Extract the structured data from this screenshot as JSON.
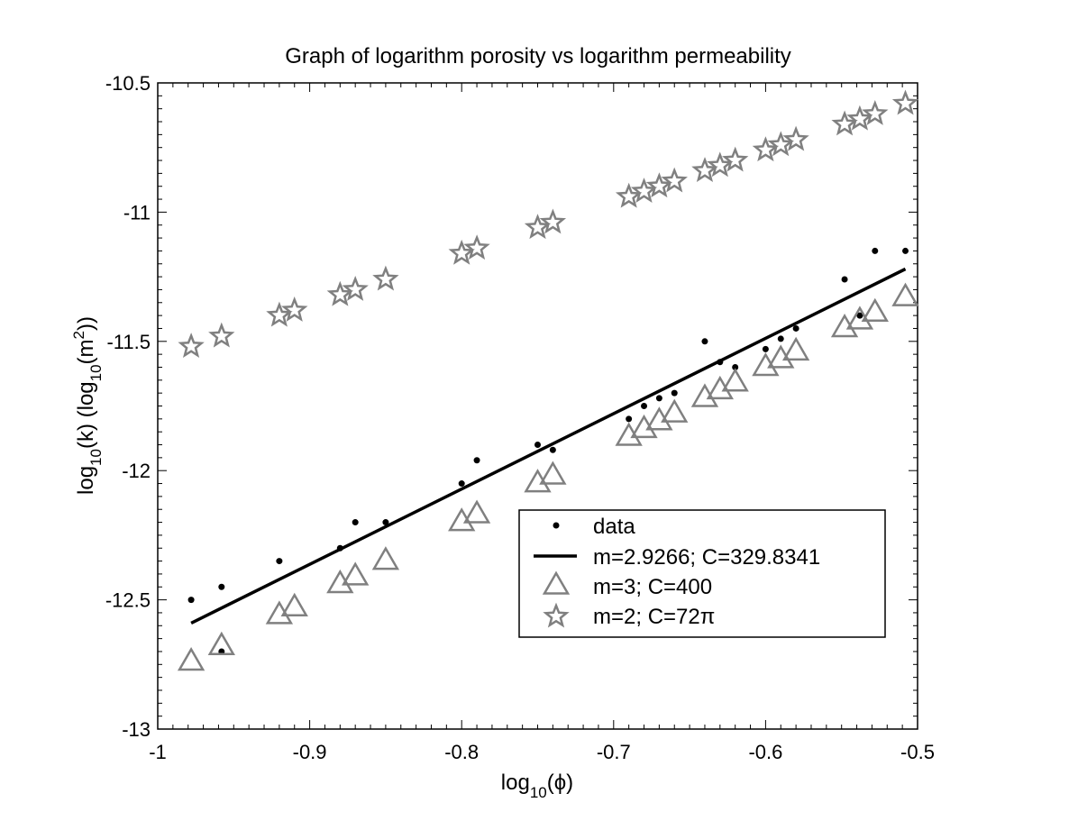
{
  "chart_data": {
    "type": "scatter",
    "title": "Graph of logarithm porosity vs logarithm permeability",
    "xlabel": {
      "pre": "log",
      "sub": "10",
      "post": "(ϕ)"
    },
    "ylabel": {
      "p1": "log",
      "s1": "10",
      "p2": "(k) (log",
      "s2": "10",
      "p3": "(m",
      "sup": "2",
      "p4": "))"
    },
    "xlim": [
      -1,
      -0.5
    ],
    "ylim": [
      -13,
      -10.5
    ],
    "xticks": [
      "-1",
      "-0.9",
      "-0.8",
      "-0.7",
      "-0.6",
      "-0.5"
    ],
    "yticks": [
      "-10.5",
      "-11",
      "-11.5",
      "-12",
      "-12.5",
      "-13"
    ],
    "grid": false,
    "legend_position": "lower-right",
    "series": [
      {
        "name": "data",
        "marker": "dot",
        "color": "#000000",
        "points": [
          [
            -0.978,
            -12.5
          ],
          [
            -0.958,
            -12.45
          ],
          [
            -0.958,
            -12.7
          ],
          [
            -0.92,
            -12.35
          ],
          [
            -0.88,
            -12.3
          ],
          [
            -0.87,
            -12.2
          ],
          [
            -0.85,
            -12.2
          ],
          [
            -0.8,
            -12.05
          ],
          [
            -0.79,
            -11.96
          ],
          [
            -0.75,
            -11.9
          ],
          [
            -0.74,
            -11.92
          ],
          [
            -0.69,
            -11.8
          ],
          [
            -0.68,
            -11.75
          ],
          [
            -0.67,
            -11.72
          ],
          [
            -0.66,
            -11.7
          ],
          [
            -0.64,
            -11.5
          ],
          [
            -0.63,
            -11.58
          ],
          [
            -0.62,
            -11.6
          ],
          [
            -0.6,
            -11.53
          ],
          [
            -0.59,
            -11.49
          ],
          [
            -0.58,
            -11.45
          ],
          [
            -0.548,
            -11.26
          ],
          [
            -0.538,
            -11.4
          ],
          [
            -0.528,
            -11.15
          ],
          [
            -0.508,
            -11.15
          ]
        ]
      },
      {
        "name": "m=2.9266; C=329.8341",
        "marker": "line",
        "color": "#000000",
        "points": [
          [
            -0.978,
            -12.59
          ],
          [
            -0.508,
            -11.22
          ]
        ]
      },
      {
        "name": "m=3; C=400",
        "marker": "triangle",
        "color": "#808080",
        "points": [
          [
            -0.978,
            -12.74
          ],
          [
            -0.958,
            -12.68
          ],
          [
            -0.92,
            -12.56
          ],
          [
            -0.91,
            -12.53
          ],
          [
            -0.88,
            -12.44
          ],
          [
            -0.87,
            -12.41
          ],
          [
            -0.85,
            -12.35
          ],
          [
            -0.8,
            -12.2
          ],
          [
            -0.79,
            -12.17
          ],
          [
            -0.75,
            -12.05
          ],
          [
            -0.74,
            -12.02
          ],
          [
            -0.69,
            -11.87
          ],
          [
            -0.68,
            -11.84
          ],
          [
            -0.67,
            -11.81
          ],
          [
            -0.66,
            -11.78
          ],
          [
            -0.64,
            -11.72
          ],
          [
            -0.63,
            -11.69
          ],
          [
            -0.62,
            -11.66
          ],
          [
            -0.6,
            -11.6
          ],
          [
            -0.59,
            -11.57
          ],
          [
            -0.58,
            -11.54
          ],
          [
            -0.548,
            -11.45
          ],
          [
            -0.538,
            -11.42
          ],
          [
            -0.528,
            -11.39
          ],
          [
            -0.508,
            -11.33
          ]
        ]
      },
      {
        "name": "m=2; C=72π",
        "marker": "star",
        "color": "#808080",
        "points": [
          [
            -0.978,
            -11.52
          ],
          [
            -0.958,
            -11.48
          ],
          [
            -0.92,
            -11.4
          ],
          [
            -0.91,
            -11.38
          ],
          [
            -0.88,
            -11.32
          ],
          [
            -0.87,
            -11.3
          ],
          [
            -0.85,
            -11.26
          ],
          [
            -0.8,
            -11.16
          ],
          [
            -0.79,
            -11.14
          ],
          [
            -0.75,
            -11.06
          ],
          [
            -0.74,
            -11.04
          ],
          [
            -0.69,
            -10.94
          ],
          [
            -0.68,
            -10.92
          ],
          [
            -0.67,
            -10.9
          ],
          [
            -0.66,
            -10.88
          ],
          [
            -0.64,
            -10.84
          ],
          [
            -0.63,
            -10.82
          ],
          [
            -0.62,
            -10.8
          ],
          [
            -0.6,
            -10.76
          ],
          [
            -0.59,
            -10.74
          ],
          [
            -0.58,
            -10.72
          ],
          [
            -0.548,
            -10.66
          ],
          [
            -0.538,
            -10.64
          ],
          [
            -0.528,
            -10.62
          ],
          [
            -0.508,
            -10.58
          ]
        ]
      }
    ]
  }
}
